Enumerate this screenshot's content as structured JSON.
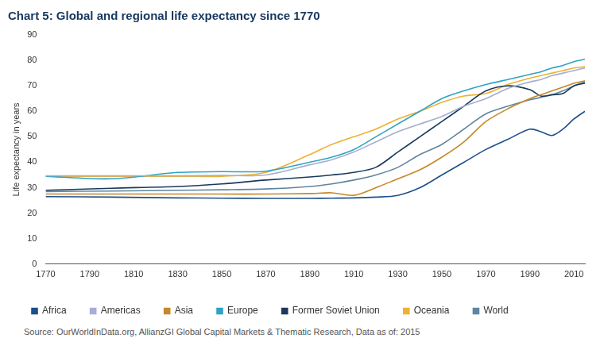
{
  "chart_data": {
    "type": "line",
    "title": "Chart 5: Global and regional life expectancy since 1770",
    "y_label": "Life expectancy in years",
    "source": "Source: OurWorldInData.org, AllianzGI Global Capital Markets & Thematic Research, Data as of: 2015",
    "x": [
      1770,
      1800,
      1830,
      1850,
      1870,
      1890,
      1900,
      1910,
      1920,
      1930,
      1940,
      1950,
      1960,
      1970,
      1980,
      1990,
      1995,
      2000,
      2005,
      2010,
      2015
    ],
    "series": [
      {
        "name": "Africa",
        "color": "#1c4f8c",
        "values": [
          26.5,
          26.3,
          26.0,
          25.9,
          25.8,
          25.8,
          25.9,
          26.0,
          26.3,
          27.0,
          30.0,
          35.0,
          40.0,
          45.0,
          49.0,
          53.0,
          52.0,
          50.5,
          53.0,
          57.0,
          60.0
        ]
      },
      {
        "name": "Americas",
        "color": "#a6aed2",
        "values": [
          34.7,
          34.7,
          34.7,
          34.8,
          35.0,
          39.0,
          41.0,
          44.0,
          48.0,
          52.0,
          55.0,
          58.0,
          62.0,
          65.0,
          69.0,
          71.5,
          72.5,
          74.0,
          75.0,
          76.0,
          77.0
        ]
      },
      {
        "name": "Asia",
        "color": "#c5882a",
        "values": [
          27.5,
          27.5,
          27.5,
          27.5,
          27.5,
          27.7,
          28.0,
          27.0,
          30.0,
          33.5,
          37.0,
          42.0,
          48.0,
          56.0,
          61.0,
          65.0,
          66.5,
          68.0,
          69.5,
          71.0,
          72.0
        ]
      },
      {
        "name": "Europe",
        "color": "#2ea3c4",
        "values": [
          34.5,
          33.5,
          36.0,
          36.3,
          36.5,
          40.0,
          42.0,
          45.0,
          50.0,
          55.0,
          60.0,
          65.0,
          68.0,
          70.5,
          72.5,
          74.5,
          75.5,
          77.0,
          78.0,
          79.5,
          80.5
        ]
      },
      {
        "name": "Former Soviet Union",
        "color": "#1a3a5c",
        "values": [
          29.0,
          29.8,
          30.5,
          31.5,
          33.0,
          34.2,
          35.0,
          36.0,
          38.0,
          44.0,
          50.0,
          56.0,
          62.0,
          68.0,
          70.0,
          68.5,
          66.0,
          66.5,
          67.0,
          70.0,
          71.0
        ]
      },
      {
        "name": "Oceania",
        "color": "#f0b030",
        "values": [
          34.5,
          34.5,
          34.5,
          34.5,
          36.0,
          43.0,
          47.0,
          50.0,
          53.0,
          57.0,
          60.0,
          63.5,
          66.0,
          67.0,
          70.5,
          73.0,
          74.0,
          75.0,
          76.0,
          77.0,
          77.5
        ]
      },
      {
        "name": "World",
        "color": "#5f86a0",
        "values": [
          28.5,
          28.7,
          29.0,
          29.2,
          29.5,
          30.5,
          31.5,
          33.0,
          35.0,
          38.0,
          43.0,
          47.0,
          53.0,
          59.0,
          62.0,
          64.5,
          65.5,
          66.5,
          68.0,
          70.0,
          71.5
        ]
      }
    ],
    "xlim": [
      1770,
      2015
    ],
    "xticks": [
      1770,
      1790,
      1810,
      1830,
      1850,
      1870,
      1890,
      1910,
      1930,
      1950,
      1970,
      1990,
      2010
    ],
    "ylim": [
      0,
      90
    ],
    "yticks": [
      0,
      10,
      20,
      30,
      40,
      50,
      60,
      70,
      80,
      90
    ],
    "grid": false,
    "legend": "bottom"
  }
}
